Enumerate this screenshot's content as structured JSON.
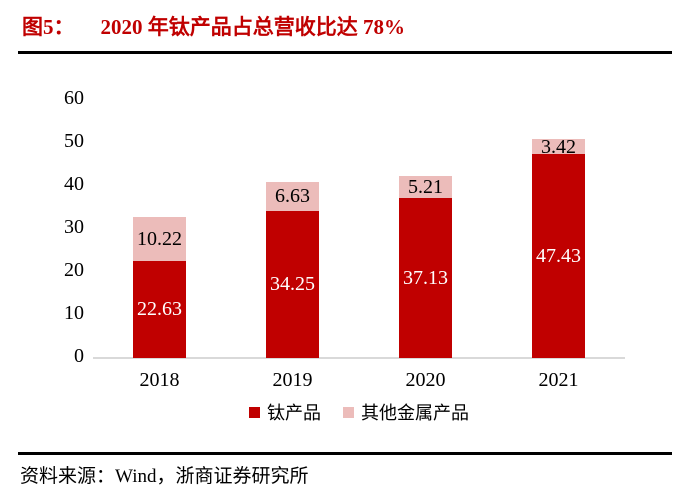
{
  "figure": {
    "tag": "图5：",
    "title": "2020 年钛产品占总营收比达 78%"
  },
  "source": {
    "label": "资料来源：",
    "text": "Wind，浙商证券研究所"
  },
  "colors": {
    "title_red": "#C00000",
    "titanium_series": "#C00000",
    "other_metal_series": "#ECBCBA",
    "axis_line": "#D9D9D9",
    "divider": "#000000"
  },
  "chart_data": {
    "type": "bar",
    "stacked": true,
    "title": "2020 年钛产品占总营收比达 78%",
    "categories": [
      "2018",
      "2019",
      "2020",
      "2021"
    ],
    "series": [
      {
        "name": "钛产品",
        "color": "#C00000",
        "label_color": "#FFFFFF",
        "values": [
          22.63,
          34.25,
          37.13,
          47.43
        ]
      },
      {
        "name": "其他金属产品",
        "color": "#ECBCBA",
        "label_color": "#000000",
        "values": [
          10.22,
          6.63,
          5.21,
          3.42
        ]
      }
    ],
    "xlabel": "",
    "ylabel": "",
    "ylim": [
      0,
      60
    ],
    "yticks": [
      0,
      10,
      20,
      30,
      40,
      50,
      60
    ],
    "grid": false,
    "legend_position": "bottom",
    "value_labels": true
  }
}
